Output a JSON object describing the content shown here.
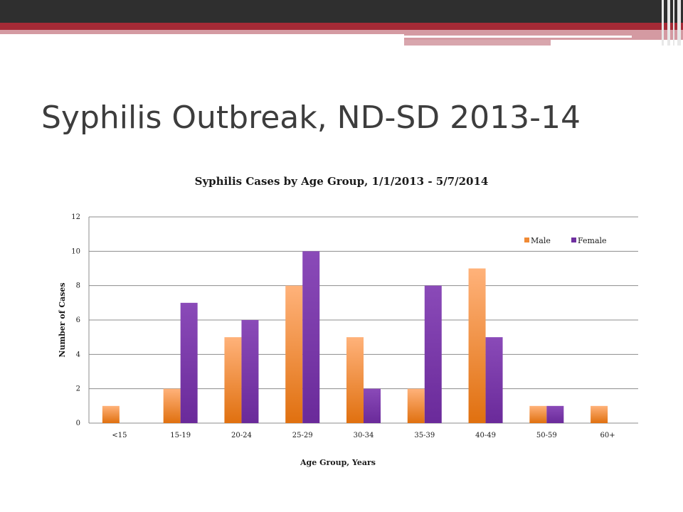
{
  "slide": {
    "title": "Syphilis Outbreak, ND-SD 2013-14"
  },
  "colors": {
    "header_dark": "#2f2f2f",
    "header_red": "#a52a36",
    "header_pink": "#d49aa2",
    "male": "#f08a35",
    "female": "#7030a0"
  },
  "chart_data": {
    "type": "bar",
    "title": "Syphilis Cases by Age Group, 1/1/2013 - 5/7/2014",
    "xlabel": "Age Group, Years",
    "ylabel": "Number of Cases",
    "ylim": [
      0,
      12
    ],
    "yticks": [
      0,
      2,
      4,
      6,
      8,
      10,
      12
    ],
    "grid": true,
    "legend_position": "top-right",
    "categories": [
      "<15",
      "15-19",
      "20-24",
      "25-29",
      "30-34",
      "35-39",
      "40-49",
      "50-59",
      "60+"
    ],
    "series": [
      {
        "name": "Male",
        "values": [
          1,
          2,
          5,
          8,
          5,
          2,
          9,
          1,
          1
        ]
      },
      {
        "name": "Female",
        "values": [
          0,
          7,
          6,
          10,
          2,
          8,
          5,
          1,
          0
        ]
      }
    ]
  }
}
